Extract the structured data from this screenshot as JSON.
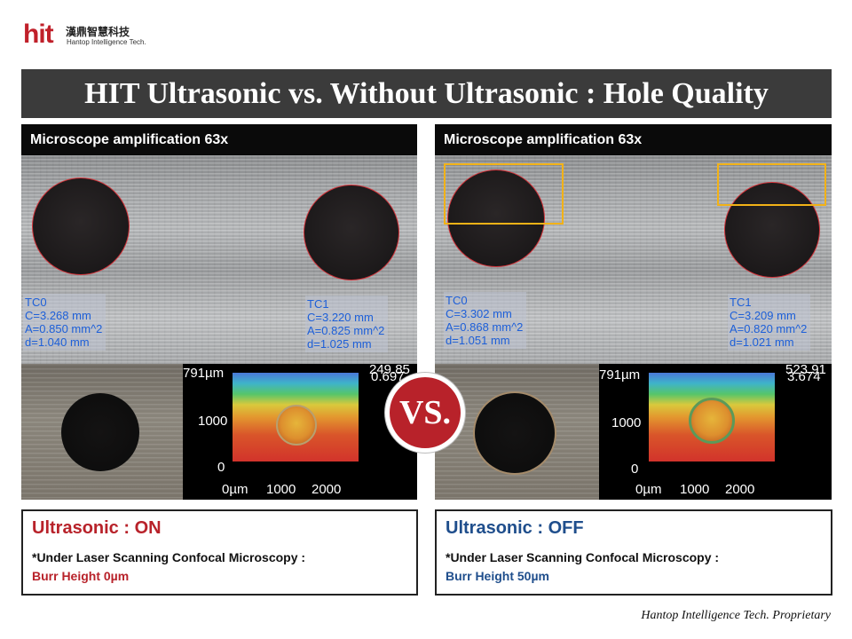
{
  "logo": {
    "brand": "hit",
    "chinese": "漢鼎智慧科技",
    "english": "Hantop Intelligence Tech."
  },
  "title": "HIT Ultrasonic vs. Without Ultrasonic : Hole Quality",
  "left_panel": {
    "header": "Microscope amplification 63x",
    "tc0": [
      "TC0",
      "C=3.268 mm",
      "A=0.850 mm^2",
      "d=1.040 mm"
    ],
    "tc1": [
      "TC1",
      "C=3.220 mm",
      "A=0.825 mm^2",
      "d=1.025 mm"
    ],
    "plot": {
      "top_label": "791µm",
      "right_label": "0.697",
      "right_label_2": "249.85",
      "y_1000": "1000",
      "y_0": "0",
      "x_labels": [
        "0µm",
        "1000",
        "2000"
      ]
    }
  },
  "right_panel": {
    "header": "Microscope amplification 63x",
    "tc0": [
      "TC0",
      "C=3.302 mm",
      "A=0.868 mm^2",
      "d=1.051 mm"
    ],
    "tc1": [
      "TC1",
      "C=3.209 mm",
      "A=0.820 mm^2",
      "d=1.021 mm"
    ],
    "plot": {
      "top_label": "791µm",
      "right_label": "3.674",
      "right_label_2": "523.91",
      "y_1000": "1000",
      "y_0": "0",
      "x_labels": [
        "0µm",
        "1000",
        "2000"
      ]
    }
  },
  "vs_badge": "VS.",
  "result_left": {
    "title": "Ultrasonic : ON",
    "subtitle": "*Under Laser Scanning Confocal Microscopy :",
    "value": "Burr Height 0µm"
  },
  "result_right": {
    "title": "Ultrasonic : OFF",
    "subtitle": "*Under Laser Scanning Confocal Microscopy :",
    "value": "Burr Height 50µm"
  },
  "footer": "Hantop Intelligence Tech. Proprietary",
  "colors": {
    "title_bg": "#3b3b3b",
    "on_red": "#b8222a",
    "off_blue": "#1f4e8c",
    "highlight": "#f2b217"
  }
}
